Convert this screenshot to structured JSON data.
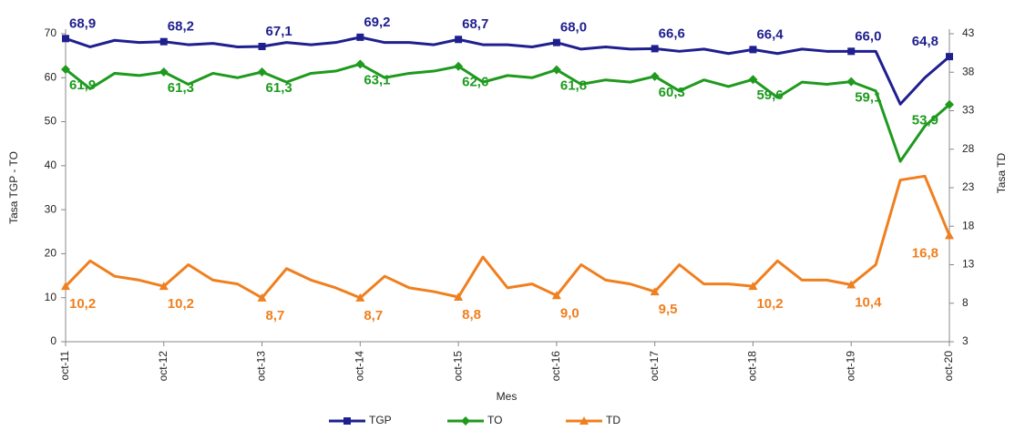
{
  "chart_data": {
    "type": "line",
    "y_label": "Tasa TGP - TO",
    "y2_label": "Tasa TD",
    "x_label": "Mes",
    "categories": [
      "oct-11",
      null,
      null,
      null,
      "oct-12",
      null,
      null,
      null,
      "oct-13",
      null,
      null,
      null,
      "oct-14",
      null,
      null,
      null,
      "oct-15",
      null,
      null,
      null,
      "oct-16",
      null,
      null,
      null,
      "oct-17",
      null,
      null,
      null,
      "oct-18",
      null,
      null,
      null,
      "oct-19",
      null,
      null,
      null,
      "oct-20"
    ],
    "ylim": [
      0,
      70
    ],
    "yticks": [
      0,
      10,
      20,
      30,
      40,
      50,
      60,
      70
    ],
    "y2lim": [
      3,
      43
    ],
    "y2ticks": [
      3,
      8,
      13,
      18,
      23,
      28,
      33,
      38,
      43
    ],
    "legend": "bottom",
    "series": [
      {
        "name": "TGP",
        "color": "#1f1f8f",
        "values": [
          68.9,
          67,
          68.5,
          68,
          68.2,
          67.5,
          67.8,
          67,
          67.1,
          68,
          67.5,
          68,
          69.2,
          68,
          68,
          67.5,
          68.7,
          67.5,
          67.5,
          67,
          68.0,
          66.5,
          67,
          66.5,
          66.6,
          66,
          66.5,
          65.5,
          66.4,
          65.5,
          66.5,
          66,
          66.0,
          66,
          54,
          60,
          64.8
        ],
        "value_labels": [
          "68,9",
          null,
          null,
          null,
          "68,2",
          null,
          null,
          null,
          "67,1",
          null,
          null,
          null,
          "69,2",
          null,
          null,
          null,
          "68,7",
          null,
          null,
          null,
          "68,0",
          null,
          null,
          null,
          "66,6",
          null,
          null,
          null,
          "66,4",
          null,
          null,
          null,
          "66,0",
          null,
          null,
          null,
          "64,8"
        ]
      },
      {
        "name": "TO",
        "color": "#1e9a1e",
        "values": [
          61.9,
          57.5,
          61,
          60.5,
          61.3,
          58.5,
          61,
          60,
          61.3,
          59,
          61,
          61.5,
          63.1,
          60,
          61,
          61.5,
          62.6,
          59,
          60.5,
          60,
          61.8,
          58.5,
          59.5,
          59,
          60.3,
          57,
          59.5,
          58,
          59.6,
          55.5,
          59,
          58.5,
          59.1,
          57,
          41,
          49,
          53.9
        ],
        "value_labels": [
          "61,9",
          null,
          null,
          null,
          "61,3",
          null,
          null,
          null,
          "61,3",
          null,
          null,
          null,
          "63,1",
          null,
          null,
          null,
          "62,6",
          null,
          null,
          null,
          "61,8",
          null,
          null,
          null,
          "60,3",
          null,
          null,
          null,
          "59,6",
          null,
          null,
          null,
          "59,1",
          null,
          null,
          null,
          "53,9"
        ]
      },
      {
        "name": "TD",
        "color": "#f07f1e",
        "axis": "y2",
        "values": [
          10.2,
          13.5,
          11.5,
          11,
          10.2,
          13,
          11,
          10.5,
          8.7,
          12.5,
          11,
          10,
          8.7,
          11.5,
          10,
          9.5,
          8.8,
          14,
          10,
          10.5,
          9.0,
          13,
          11,
          10.5,
          9.5,
          13,
          10.5,
          10.5,
          10.2,
          13.5,
          11,
          11,
          10.4,
          13,
          24,
          24.5,
          16.8
        ],
        "value_labels": [
          "10,2",
          null,
          null,
          null,
          "10,2",
          null,
          null,
          null,
          "8,7",
          null,
          null,
          null,
          "8,7",
          null,
          null,
          null,
          "8,8",
          null,
          null,
          null,
          "9,0",
          null,
          null,
          null,
          "9,5",
          null,
          null,
          null,
          "10,2",
          null,
          null,
          null,
          "10,4",
          null,
          null,
          null,
          "16,8"
        ]
      }
    ]
  }
}
